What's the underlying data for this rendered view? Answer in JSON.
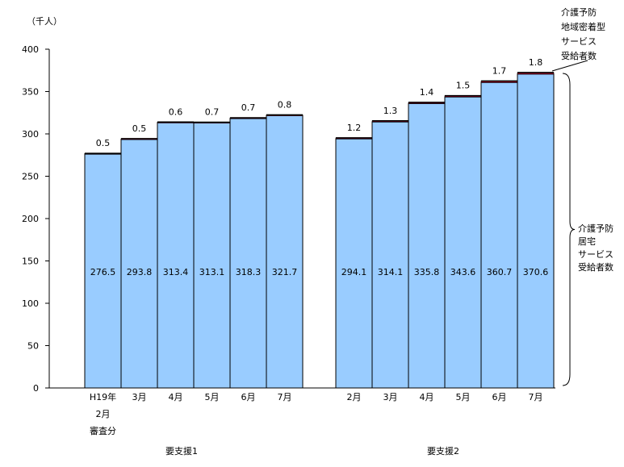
{
  "chart_data": {
    "type": "bar",
    "unit_label": "（千人）",
    "ylim": [
      0,
      400
    ],
    "y_ticks": [
      "0",
      "50",
      "100",
      "150",
      "200",
      "250",
      "300",
      "350",
      "400"
    ],
    "grid": false,
    "bar_color": "#99ccff",
    "top_color": "#cc0033",
    "groups": [
      {
        "name": "要支援1",
        "categories": [
          [
            "H19年",
            "2月",
            "審査分"
          ],
          [
            "3月"
          ],
          [
            "4月"
          ],
          [
            "5月"
          ],
          [
            "6月"
          ],
          [
            "7月"
          ]
        ],
        "series": [
          {
            "name": "介護予防居宅サービス受給者数",
            "values": [
              276.5,
              293.8,
              313.4,
              313.1,
              318.3,
              321.7
            ]
          },
          {
            "name": "介護予防地域密着型サービス受給者数",
            "values": [
              0.5,
              0.5,
              0.6,
              0.7,
              0.7,
              0.8
            ]
          }
        ]
      },
      {
        "name": "要支援2",
        "categories": [
          [
            "2月"
          ],
          [
            "3月"
          ],
          [
            "4月"
          ],
          [
            "5月"
          ],
          [
            "6月"
          ],
          [
            "7月"
          ]
        ],
        "series": [
          {
            "name": "介護予防居宅サービス受給者数",
            "values": [
              294.1,
              314.1,
              335.8,
              343.6,
              360.7,
              370.6
            ]
          },
          {
            "name": "介護予防地域密着型サービス受給者数",
            "values": [
              1.2,
              1.3,
              1.4,
              1.5,
              1.7,
              1.8
            ]
          }
        ]
      }
    ],
    "annotation_top": [
      "介護予防",
      "地域密着型",
      "サービス",
      "受給者数"
    ],
    "annotation_side": [
      "介護予防",
      "居宅",
      "サービス",
      "受給者数"
    ]
  }
}
